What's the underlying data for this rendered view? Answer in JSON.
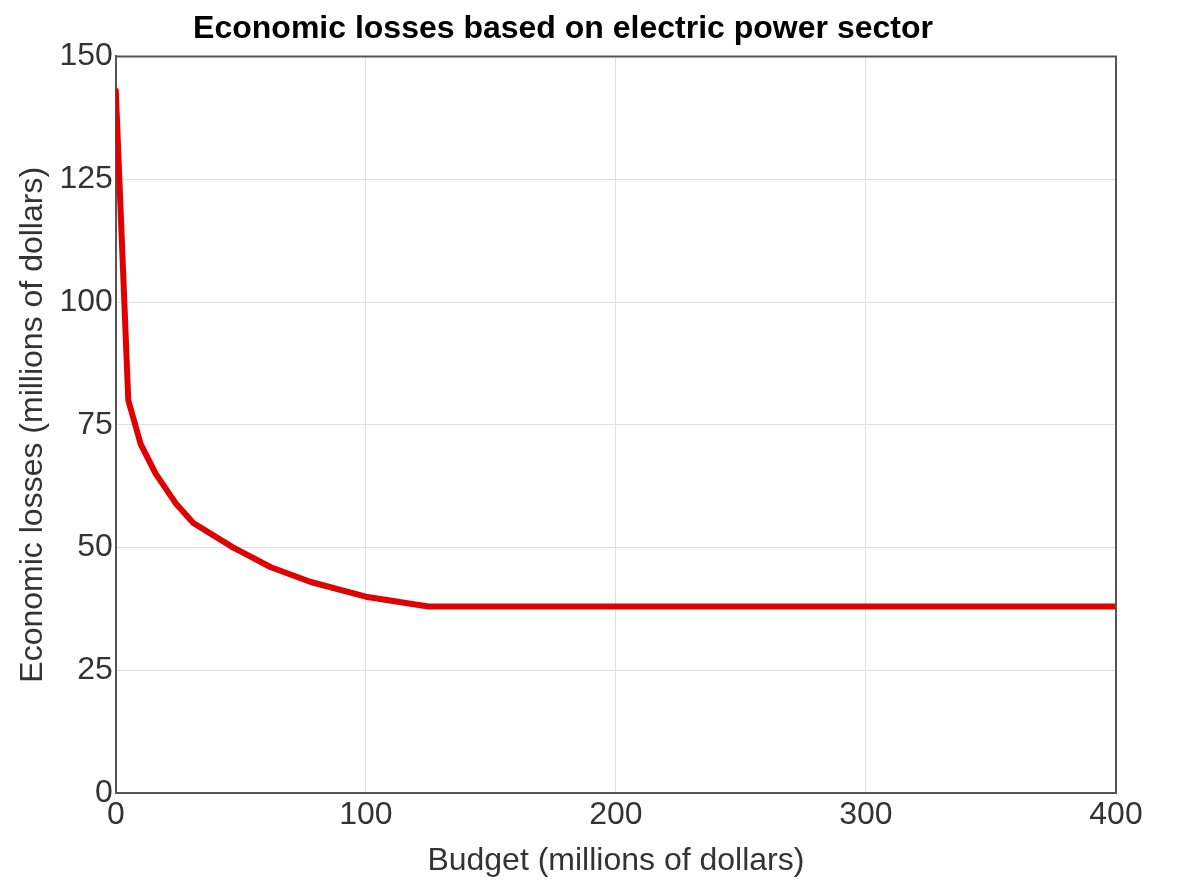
{
  "chart_data": {
    "type": "line",
    "title": "Economic losses based on electric power sector",
    "xlabel": "Budget (millions of dollars)",
    "ylabel": "Economic losses (millions of dollars)",
    "x": [
      0,
      5,
      10,
      16,
      24,
      31,
      47,
      62,
      78,
      100,
      125,
      400
    ],
    "series": [
      {
        "color": "#e00000",
        "values": [
          143,
          80,
          71,
          65,
          59,
          55,
          50,
          46,
          43,
          40,
          38,
          38
        ]
      }
    ],
    "xlim": [
      0,
      400
    ],
    "xticks": [
      0,
      100,
      200,
      300,
      400
    ],
    "ylim": [
      0,
      150
    ],
    "yticks": [
      0,
      25,
      50,
      75,
      100,
      125,
      150
    ],
    "grid": true,
    "legend": false,
    "marker": "none",
    "line_style": "solid"
  }
}
